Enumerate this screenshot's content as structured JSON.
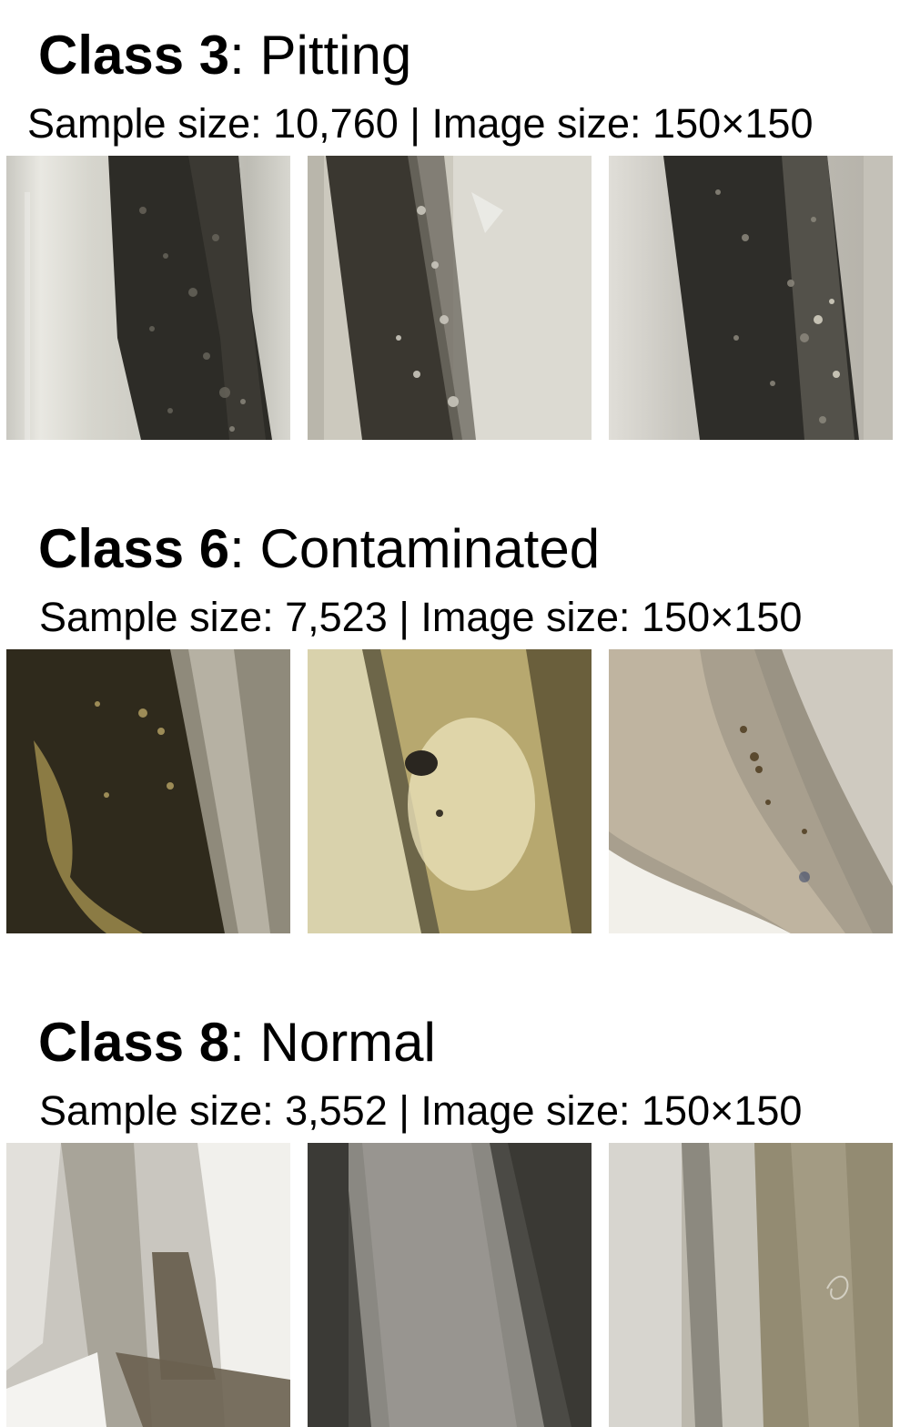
{
  "sections": [
    {
      "class_label": "Class 3",
      "class_name": ": Pitting",
      "subtitle": "Sample size: 10,760 | Image size: 150×150",
      "images": [
        "pitting-sample-1",
        "pitting-sample-2",
        "pitting-sample-3"
      ]
    },
    {
      "class_label": "Class 6",
      "class_name": ": Contaminated",
      "subtitle": "Sample size: 7,523 | Image size: 150×150",
      "images": [
        "contaminated-sample-1",
        "contaminated-sample-2",
        "contaminated-sample-3"
      ]
    },
    {
      "class_label": "Class 8",
      "class_name": ": Normal",
      "subtitle": "Sample size: 3,552 | Image size: 150×150",
      "images": [
        "normal-sample-1",
        "normal-sample-2",
        "normal-sample-3"
      ]
    }
  ]
}
